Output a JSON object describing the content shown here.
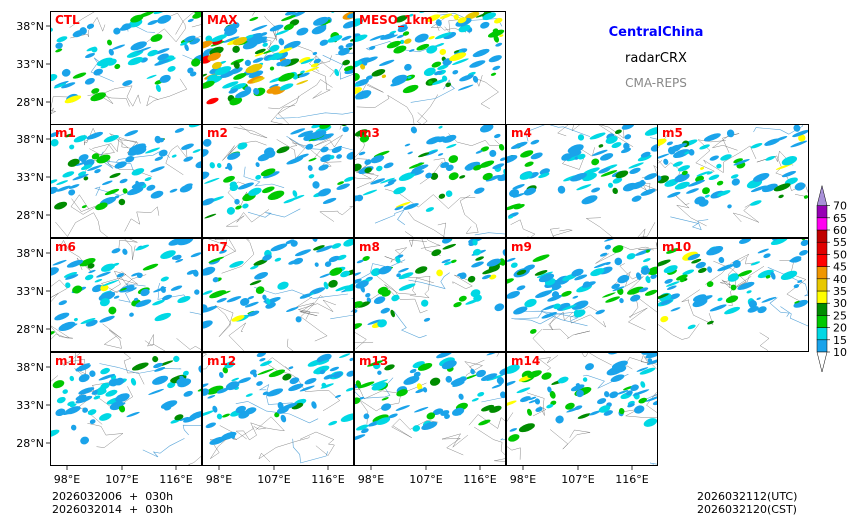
{
  "title": {
    "region": "CentralChina",
    "variable": "radarCRX",
    "source": "CMA-REPS"
  },
  "panels": [
    {
      "label": "CTL"
    },
    {
      "label": "MAX"
    },
    {
      "label": "MESO_1km"
    },
    {
      "label": "m1"
    },
    {
      "label": "m2"
    },
    {
      "label": "m3"
    },
    {
      "label": "m4"
    },
    {
      "label": "m5"
    },
    {
      "label": "m6"
    },
    {
      "label": "m7"
    },
    {
      "label": "m8"
    },
    {
      "label": "m9"
    },
    {
      "label": "m10"
    },
    {
      "label": "m11"
    },
    {
      "label": "m12"
    },
    {
      "label": "m13"
    },
    {
      "label": "m14"
    }
  ],
  "axes": {
    "lat_ticks": [
      "38°N",
      "33°N",
      "28°N"
    ],
    "lon_ticks": [
      "98°E",
      "107°E",
      "116°E"
    ]
  },
  "colorbar": {
    "levels": [
      "10",
      "15",
      "20",
      "25",
      "30",
      "35",
      "40",
      "45",
      "50",
      "55",
      "60",
      "65",
      "70"
    ],
    "colors": [
      "#1aa3ea",
      "#00d8e4",
      "#00c800",
      "#008c00",
      "#ffff00",
      "#e8c800",
      "#f09600",
      "#ff0000",
      "#e00000",
      "#c00000",
      "#ff00f0",
      "#9600b4",
      "#a890d8"
    ]
  },
  "footer": {
    "init_line1": "2026032006  +  030h",
    "init_line2": "2026032014  +  030h",
    "valid_utc": "2026032112(UTC)",
    "valid_cst": "2026032120(CST)"
  }
}
